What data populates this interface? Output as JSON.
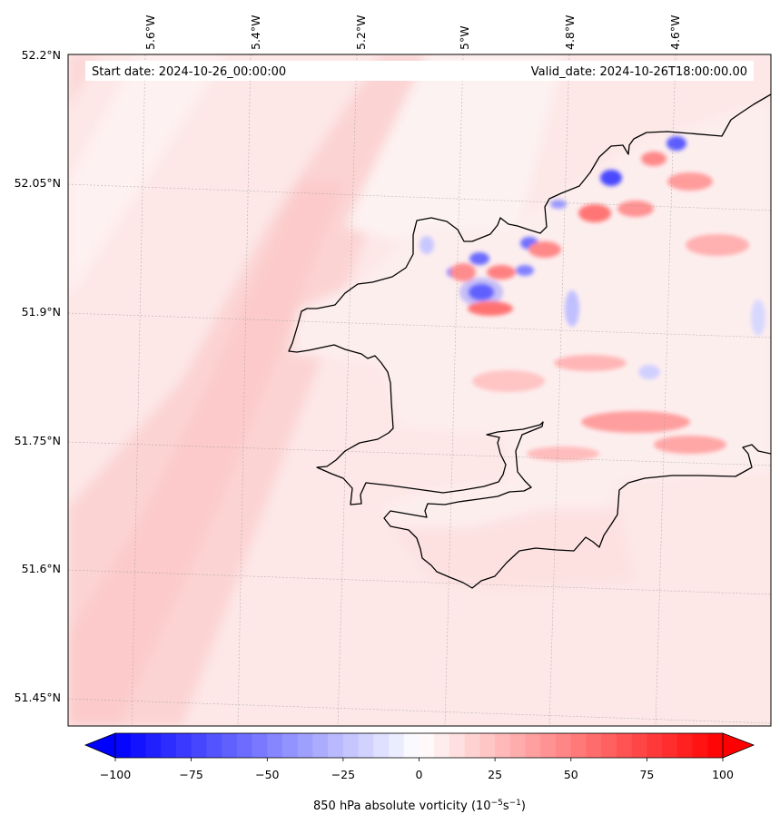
{
  "header": {
    "start_date": "Start date: 2024-10-26_00:00:00",
    "valid_date": "Valid_date: 2024-10-26T18:00:00.00"
  },
  "axes": {
    "lon_ticks": [
      "5.6°W",
      "5.4°W",
      "5.2°W",
      "5°W",
      "4.8°W",
      "4.6°W"
    ],
    "lat_ticks": [
      "52.2°N",
      "52.05°N",
      "51.9°N",
      "51.75°N",
      "51.6°N",
      "51.45°N"
    ]
  },
  "colorbar": {
    "ticks": [
      "−100",
      "−75",
      "−50",
      "−25",
      "0",
      "25",
      "50",
      "75",
      "100"
    ],
    "label_main": "850 hPa absolute vorticity (10",
    "label_exp1": "−5",
    "label_s": "s",
    "label_exp2": "−1",
    "label_close": ")",
    "vmin": -100,
    "vmax": 100,
    "extend": "both",
    "cmap": "bwr",
    "neg_color": "#0000ff",
    "zero_color": "#ffffff",
    "pos_color": "#ff0000"
  }
}
